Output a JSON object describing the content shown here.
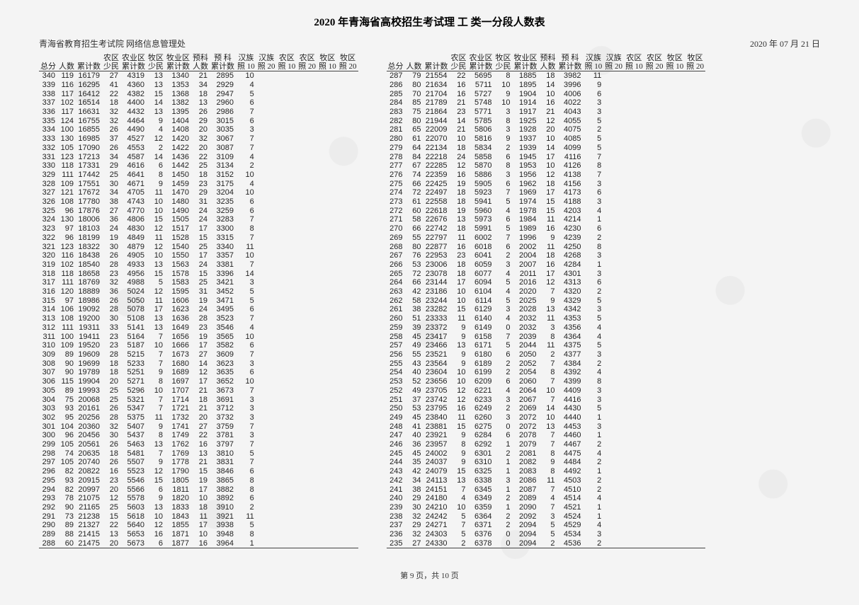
{
  "title": "2020 年青海省高校招生考试理  工  类一分段人数表",
  "org": "青海省教育招生考试院  网络信息管理处",
  "date": "2020 年 07 月 21 日",
  "footer": "第 9 页，共 10 页",
  "columns": [
    "总分",
    "人数",
    "累计数",
    "农区\n少民",
    "农业区\n累计数",
    "牧区\n少民",
    "牧业区\n累计数",
    "预科\n人数",
    "预  科\n累计数",
    "汉族\n照 10",
    "汉族\n照 20",
    "农区\n照 10",
    "农区\n照 20",
    "牧区\n照 10",
    "牧区\n照 20"
  ],
  "left": [
    [
      340,
      119,
      16179,
      27,
      4319,
      13,
      1340,
      21,
      2895,
      10,
      "",
      "",
      "",
      "",
      ""
    ],
    [
      339,
      116,
      16295,
      41,
      4360,
      13,
      1353,
      34,
      2929,
      4,
      "",
      "",
      "",
      "",
      ""
    ],
    [
      338,
      117,
      16412,
      22,
      4382,
      15,
      1368,
      18,
      2947,
      5,
      "",
      "",
      "",
      "",
      ""
    ],
    [
      337,
      102,
      16514,
      18,
      4400,
      14,
      1382,
      13,
      2960,
      6,
      "",
      "",
      "",
      "",
      ""
    ],
    [
      336,
      117,
      16631,
      32,
      4432,
      13,
      1395,
      26,
      2986,
      7,
      "",
      "",
      "",
      "",
      ""
    ],
    [
      335,
      124,
      16755,
      32,
      4464,
      9,
      1404,
      29,
      3015,
      6,
      "",
      "",
      "",
      "",
      ""
    ],
    [
      334,
      100,
      16855,
      26,
      4490,
      4,
      1408,
      20,
      3035,
      3,
      "",
      "",
      "",
      "",
      ""
    ],
    [
      333,
      130,
      16985,
      37,
      4527,
      12,
      1420,
      32,
      3067,
      7,
      "",
      "",
      "",
      "",
      ""
    ],
    [
      332,
      105,
      17090,
      26,
      4553,
      2,
      1422,
      20,
      3087,
      7,
      "",
      "",
      "",
      "",
      ""
    ],
    [
      331,
      123,
      17213,
      34,
      4587,
      14,
      1436,
      22,
      3109,
      4,
      "",
      "",
      "",
      "",
      ""
    ],
    [
      330,
      118,
      17331,
      29,
      4616,
      6,
      1442,
      25,
      3134,
      2,
      "",
      "",
      "",
      "",
      ""
    ],
    [
      329,
      111,
      17442,
      25,
      4641,
      8,
      1450,
      18,
      3152,
      10,
      "",
      "",
      "",
      "",
      ""
    ],
    [
      328,
      109,
      17551,
      30,
      4671,
      9,
      1459,
      23,
      3175,
      4,
      "",
      "",
      "",
      "",
      ""
    ],
    [
      327,
      121,
      17672,
      34,
      4705,
      11,
      1470,
      29,
      3204,
      10,
      "",
      "",
      "",
      "",
      ""
    ],
    [
      326,
      108,
      17780,
      38,
      4743,
      10,
      1480,
      31,
      3235,
      6,
      "",
      "",
      "",
      "",
      ""
    ],
    [
      325,
      96,
      17876,
      27,
      4770,
      10,
      1490,
      24,
      3259,
      6,
      "",
      "",
      "",
      "",
      ""
    ],
    [
      324,
      130,
      18006,
      36,
      4806,
      15,
      1505,
      24,
      3283,
      7,
      "",
      "",
      "",
      "",
      ""
    ],
    [
      323,
      97,
      18103,
      24,
      4830,
      12,
      1517,
      17,
      3300,
      8,
      "",
      "",
      "",
      "",
      ""
    ],
    [
      322,
      96,
      18199,
      19,
      4849,
      11,
      1528,
      15,
      3315,
      7,
      "",
      "",
      "",
      "",
      ""
    ],
    [
      321,
      123,
      18322,
      30,
      4879,
      12,
      1540,
      25,
      3340,
      11,
      "",
      "",
      "",
      "",
      ""
    ],
    [
      320,
      116,
      18438,
      26,
      4905,
      10,
      1550,
      17,
      3357,
      10,
      "",
      "",
      "",
      "",
      ""
    ],
    [
      319,
      102,
      18540,
      28,
      4933,
      13,
      1563,
      24,
      3381,
      7,
      "",
      "",
      "",
      "",
      ""
    ],
    [
      318,
      118,
      18658,
      23,
      4956,
      15,
      1578,
      15,
      3396,
      14,
      "",
      "",
      "",
      "",
      ""
    ],
    [
      317,
      111,
      18769,
      32,
      4988,
      5,
      1583,
      25,
      3421,
      3,
      "",
      "",
      "",
      "",
      ""
    ],
    [
      316,
      120,
      18889,
      36,
      5024,
      12,
      1595,
      31,
      3452,
      5,
      "",
      "",
      "",
      "",
      ""
    ],
    [
      315,
      97,
      18986,
      26,
      5050,
      11,
      1606,
      19,
      3471,
      5,
      "",
      "",
      "",
      "",
      ""
    ],
    [
      314,
      106,
      19092,
      28,
      5078,
      17,
      1623,
      24,
      3495,
      6,
      "",
      "",
      "",
      "",
      ""
    ],
    [
      313,
      108,
      19200,
      30,
      5108,
      13,
      1636,
      28,
      3523,
      7,
      "",
      "",
      "",
      "",
      ""
    ],
    [
      312,
      111,
      19311,
      33,
      5141,
      13,
      1649,
      23,
      3546,
      4,
      "",
      "",
      "",
      "",
      ""
    ],
    [
      311,
      100,
      19411,
      23,
      5164,
      7,
      1656,
      19,
      3565,
      10,
      "",
      "",
      "",
      "",
      ""
    ],
    [
      310,
      109,
      19520,
      23,
      5187,
      10,
      1666,
      17,
      3582,
      6,
      "",
      "",
      "",
      "",
      ""
    ],
    [
      309,
      89,
      19609,
      28,
      5215,
      7,
      1673,
      27,
      3609,
      7,
      "",
      "",
      "",
      "",
      ""
    ],
    [
      308,
      90,
      19699,
      18,
      5233,
      7,
      1680,
      14,
      3623,
      3,
      "",
      "",
      "",
      "",
      ""
    ],
    [
      307,
      90,
      19789,
      18,
      5251,
      9,
      1689,
      12,
      3635,
      6,
      "",
      "",
      "",
      "",
      ""
    ],
    [
      306,
      115,
      19904,
      20,
      5271,
      8,
      1697,
      17,
      3652,
      10,
      "",
      "",
      "",
      "",
      ""
    ],
    [
      305,
      89,
      19993,
      25,
      5296,
      10,
      1707,
      21,
      3673,
      7,
      "",
      "",
      "",
      "",
      ""
    ],
    [
      304,
      75,
      20068,
      25,
      5321,
      7,
      1714,
      18,
      3691,
      3,
      "",
      "",
      "",
      "",
      ""
    ],
    [
      303,
      93,
      20161,
      26,
      5347,
      7,
      1721,
      21,
      3712,
      3,
      "",
      "",
      "",
      "",
      ""
    ],
    [
      302,
      95,
      20256,
      28,
      5375,
      11,
      1732,
      20,
      3732,
      3,
      "",
      "",
      "",
      "",
      ""
    ],
    [
      301,
      104,
      20360,
      32,
      5407,
      9,
      1741,
      27,
      3759,
      7,
      "",
      "",
      "",
      "",
      ""
    ],
    [
      300,
      96,
      20456,
      30,
      5437,
      8,
      1749,
      22,
      3781,
      3,
      "",
      "",
      "",
      "",
      ""
    ],
    [
      299,
      105,
      20561,
      26,
      5463,
      13,
      1762,
      16,
      3797,
      7,
      "",
      "",
      "",
      "",
      ""
    ],
    [
      298,
      74,
      20635,
      18,
      5481,
      7,
      1769,
      13,
      3810,
      5,
      "",
      "",
      "",
      "",
      ""
    ],
    [
      297,
      105,
      20740,
      26,
      5507,
      9,
      1778,
      21,
      3831,
      7,
      "",
      "",
      "",
      "",
      ""
    ],
    [
      296,
      82,
      20822,
      16,
      5523,
      12,
      1790,
      15,
      3846,
      6,
      "",
      "",
      "",
      "",
      ""
    ],
    [
      295,
      93,
      20915,
      23,
      5546,
      15,
      1805,
      19,
      3865,
      8,
      "",
      "",
      "",
      "",
      ""
    ],
    [
      294,
      82,
      20997,
      20,
      5566,
      6,
      1811,
      17,
      3882,
      8,
      "",
      "",
      "",
      "",
      ""
    ],
    [
      293,
      78,
      21075,
      12,
      5578,
      9,
      1820,
      10,
      3892,
      6,
      "",
      "",
      "",
      "",
      ""
    ],
    [
      292,
      90,
      21165,
      25,
      5603,
      13,
      1833,
      18,
      3910,
      2,
      "",
      "",
      "",
      "",
      ""
    ],
    [
      291,
      73,
      21238,
      15,
      5618,
      10,
      1843,
      11,
      3921,
      11,
      "",
      "",
      "",
      "",
      ""
    ],
    [
      290,
      89,
      21327,
      22,
      5640,
      12,
      1855,
      17,
      3938,
      5,
      "",
      "",
      "",
      "",
      ""
    ],
    [
      289,
      88,
      21415,
      13,
      5653,
      16,
      1871,
      10,
      3948,
      8,
      "",
      "",
      "",
      "",
      ""
    ],
    [
      288,
      60,
      21475,
      20,
      5673,
      6,
      1877,
      16,
      3964,
      1,
      "",
      "",
      "",
      "",
      ""
    ]
  ],
  "right": [
    [
      287,
      79,
      21554,
      22,
      5695,
      8,
      1885,
      18,
      3982,
      11,
      "",
      "",
      "",
      "",
      ""
    ],
    [
      286,
      80,
      21634,
      16,
      5711,
      10,
      1895,
      14,
      3996,
      9,
      "",
      "",
      "",
      "",
      ""
    ],
    [
      285,
      70,
      21704,
      16,
      5727,
      9,
      1904,
      10,
      4006,
      6,
      "",
      "",
      "",
      "",
      ""
    ],
    [
      284,
      85,
      21789,
      21,
      5748,
      10,
      1914,
      16,
      4022,
      3,
      "",
      "",
      "",
      "",
      ""
    ],
    [
      283,
      75,
      21864,
      23,
      5771,
      3,
      1917,
      21,
      4043,
      3,
      "",
      "",
      "",
      "",
      ""
    ],
    [
      282,
      80,
      21944,
      14,
      5785,
      8,
      1925,
      12,
      4055,
      5,
      "",
      "",
      "",
      "",
      ""
    ],
    [
      281,
      65,
      22009,
      21,
      5806,
      3,
      1928,
      20,
      4075,
      2,
      "",
      "",
      "",
      "",
      ""
    ],
    [
      280,
      61,
      22070,
      10,
      5816,
      9,
      1937,
      10,
      4085,
      5,
      "",
      "",
      "",
      "",
      ""
    ],
    [
      279,
      64,
      22134,
      18,
      5834,
      2,
      1939,
      14,
      4099,
      5,
      "",
      "",
      "",
      "",
      ""
    ],
    [
      278,
      84,
      22218,
      24,
      5858,
      6,
      1945,
      17,
      4116,
      7,
      "",
      "",
      "",
      "",
      ""
    ],
    [
      277,
      67,
      22285,
      12,
      5870,
      8,
      1953,
      10,
      4126,
      8,
      "",
      "",
      "",
      "",
      ""
    ],
    [
      276,
      74,
      22359,
      16,
      5886,
      3,
      1956,
      12,
      4138,
      7,
      "",
      "",
      "",
      "",
      ""
    ],
    [
      275,
      66,
      22425,
      19,
      5905,
      6,
      1962,
      18,
      4156,
      3,
      "",
      "",
      "",
      "",
      ""
    ],
    [
      274,
      72,
      22497,
      18,
      5923,
      7,
      1969,
      17,
      4173,
      6,
      "",
      "",
      "",
      "",
      ""
    ],
    [
      273,
      61,
      22558,
      18,
      5941,
      5,
      1974,
      15,
      4188,
      3,
      "",
      "",
      "",
      "",
      ""
    ],
    [
      272,
      60,
      22618,
      19,
      5960,
      4,
      1978,
      15,
      4203,
      4,
      "",
      "",
      "",
      "",
      ""
    ],
    [
      271,
      58,
      22676,
      13,
      5973,
      6,
      1984,
      11,
      4214,
      1,
      "",
      "",
      "",
      "",
      ""
    ],
    [
      270,
      66,
      22742,
      18,
      5991,
      5,
      1989,
      16,
      4230,
      6,
      "",
      "",
      "",
      "",
      ""
    ],
    [
      269,
      55,
      22797,
      11,
      6002,
      7,
      1996,
      9,
      4239,
      2,
      "",
      "",
      "",
      "",
      ""
    ],
    [
      268,
      80,
      22877,
      16,
      6018,
      6,
      2002,
      11,
      4250,
      8,
      "",
      "",
      "",
      "",
      ""
    ],
    [
      267,
      76,
      22953,
      23,
      6041,
      2,
      2004,
      18,
      4268,
      3,
      "",
      "",
      "",
      "",
      ""
    ],
    [
      266,
      53,
      23006,
      18,
      6059,
      3,
      2007,
      16,
      4284,
      1,
      "",
      "",
      "",
      "",
      ""
    ],
    [
      265,
      72,
      23078,
      18,
      6077,
      4,
      2011,
      17,
      4301,
      3,
      "",
      "",
      "",
      "",
      ""
    ],
    [
      264,
      66,
      23144,
      17,
      6094,
      5,
      2016,
      12,
      4313,
      6,
      "",
      "",
      "",
      "",
      ""
    ],
    [
      263,
      42,
      23186,
      10,
      6104,
      4,
      2020,
      7,
      4320,
      2,
      "",
      "",
      "",
      "",
      ""
    ],
    [
      262,
      58,
      23244,
      10,
      6114,
      5,
      2025,
      9,
      4329,
      5,
      "",
      "",
      "",
      "",
      ""
    ],
    [
      261,
      38,
      23282,
      15,
      6129,
      3,
      2028,
      13,
      4342,
      3,
      "",
      "",
      "",
      "",
      ""
    ],
    [
      260,
      51,
      23333,
      11,
      6140,
      4,
      2032,
      11,
      4353,
      5,
      "",
      "",
      "",
      "",
      ""
    ],
    [
      259,
      39,
      23372,
      9,
      6149,
      0,
      2032,
      3,
      4356,
      4,
      "",
      "",
      "",
      "",
      ""
    ],
    [
      258,
      45,
      23417,
      9,
      6158,
      7,
      2039,
      8,
      4364,
      4,
      "",
      "",
      "",
      "",
      ""
    ],
    [
      257,
      49,
      23466,
      13,
      6171,
      5,
      2044,
      11,
      4375,
      5,
      "",
      "",
      "",
      "",
      ""
    ],
    [
      256,
      55,
      23521,
      9,
      6180,
      6,
      2050,
      2,
      4377,
      3,
      "",
      "",
      "",
      "",
      ""
    ],
    [
      255,
      43,
      23564,
      9,
      6189,
      2,
      2052,
      7,
      4384,
      2,
      "",
      "",
      "",
      "",
      ""
    ],
    [
      254,
      40,
      23604,
      10,
      6199,
      2,
      2054,
      8,
      4392,
      4,
      "",
      "",
      "",
      "",
      ""
    ],
    [
      253,
      52,
      23656,
      10,
      6209,
      6,
      2060,
      7,
      4399,
      8,
      "",
      "",
      "",
      "",
      ""
    ],
    [
      252,
      49,
      23705,
      12,
      6221,
      4,
      2064,
      10,
      4409,
      3,
      "",
      "",
      "",
      "",
      ""
    ],
    [
      251,
      37,
      23742,
      12,
      6233,
      3,
      2067,
      7,
      4416,
      3,
      "",
      "",
      "",
      "",
      ""
    ],
    [
      250,
      53,
      23795,
      16,
      6249,
      2,
      2069,
      14,
      4430,
      5,
      "",
      "",
      "",
      "",
      ""
    ],
    [
      249,
      45,
      23840,
      11,
      6260,
      3,
      2072,
      10,
      4440,
      1,
      "",
      "",
      "",
      "",
      ""
    ],
    [
      248,
      41,
      23881,
      15,
      6275,
      0,
      2072,
      13,
      4453,
      3,
      "",
      "",
      "",
      "",
      ""
    ],
    [
      247,
      40,
      23921,
      9,
      6284,
      6,
      2078,
      7,
      4460,
      1,
      "",
      "",
      "",
      "",
      ""
    ],
    [
      246,
      36,
      23957,
      8,
      6292,
      1,
      2079,
      7,
      4467,
      2,
      "",
      "",
      "",
      "",
      ""
    ],
    [
      245,
      45,
      24002,
      9,
      6301,
      2,
      2081,
      8,
      4475,
      4,
      "",
      "",
      "",
      "",
      ""
    ],
    [
      244,
      35,
      24037,
      9,
      6310,
      1,
      2082,
      9,
      4484,
      2,
      "",
      "",
      "",
      "",
      ""
    ],
    [
      243,
      42,
      24079,
      15,
      6325,
      1,
      2083,
      8,
      4492,
      1,
      "",
      "",
      "",
      "",
      ""
    ],
    [
      242,
      34,
      24113,
      13,
      6338,
      3,
      2086,
      11,
      4503,
      2,
      "",
      "",
      "",
      "",
      ""
    ],
    [
      241,
      38,
      24151,
      7,
      6345,
      1,
      2087,
      7,
      4510,
      2,
      "",
      "",
      "",
      "",
      ""
    ],
    [
      240,
      29,
      24180,
      4,
      6349,
      2,
      2089,
      4,
      4514,
      4,
      "",
      "",
      "",
      "",
      ""
    ],
    [
      239,
      30,
      24210,
      10,
      6359,
      1,
      2090,
      7,
      4521,
      1,
      "",
      "",
      "",
      "",
      ""
    ],
    [
      238,
      32,
      24242,
      5,
      6364,
      2,
      2092,
      3,
      4524,
      1,
      "",
      "",
      "",
      "",
      ""
    ],
    [
      237,
      29,
      24271,
      7,
      6371,
      2,
      2094,
      5,
      4529,
      4,
      "",
      "",
      "",
      "",
      ""
    ],
    [
      236,
      32,
      24303,
      5,
      6376,
      0,
      2094,
      5,
      4534,
      3,
      "",
      "",
      "",
      "",
      ""
    ],
    [
      235,
      27,
      24330,
      2,
      6378,
      0,
      2094,
      2,
      4536,
      2,
      "",
      "",
      "",
      "",
      ""
    ]
  ]
}
